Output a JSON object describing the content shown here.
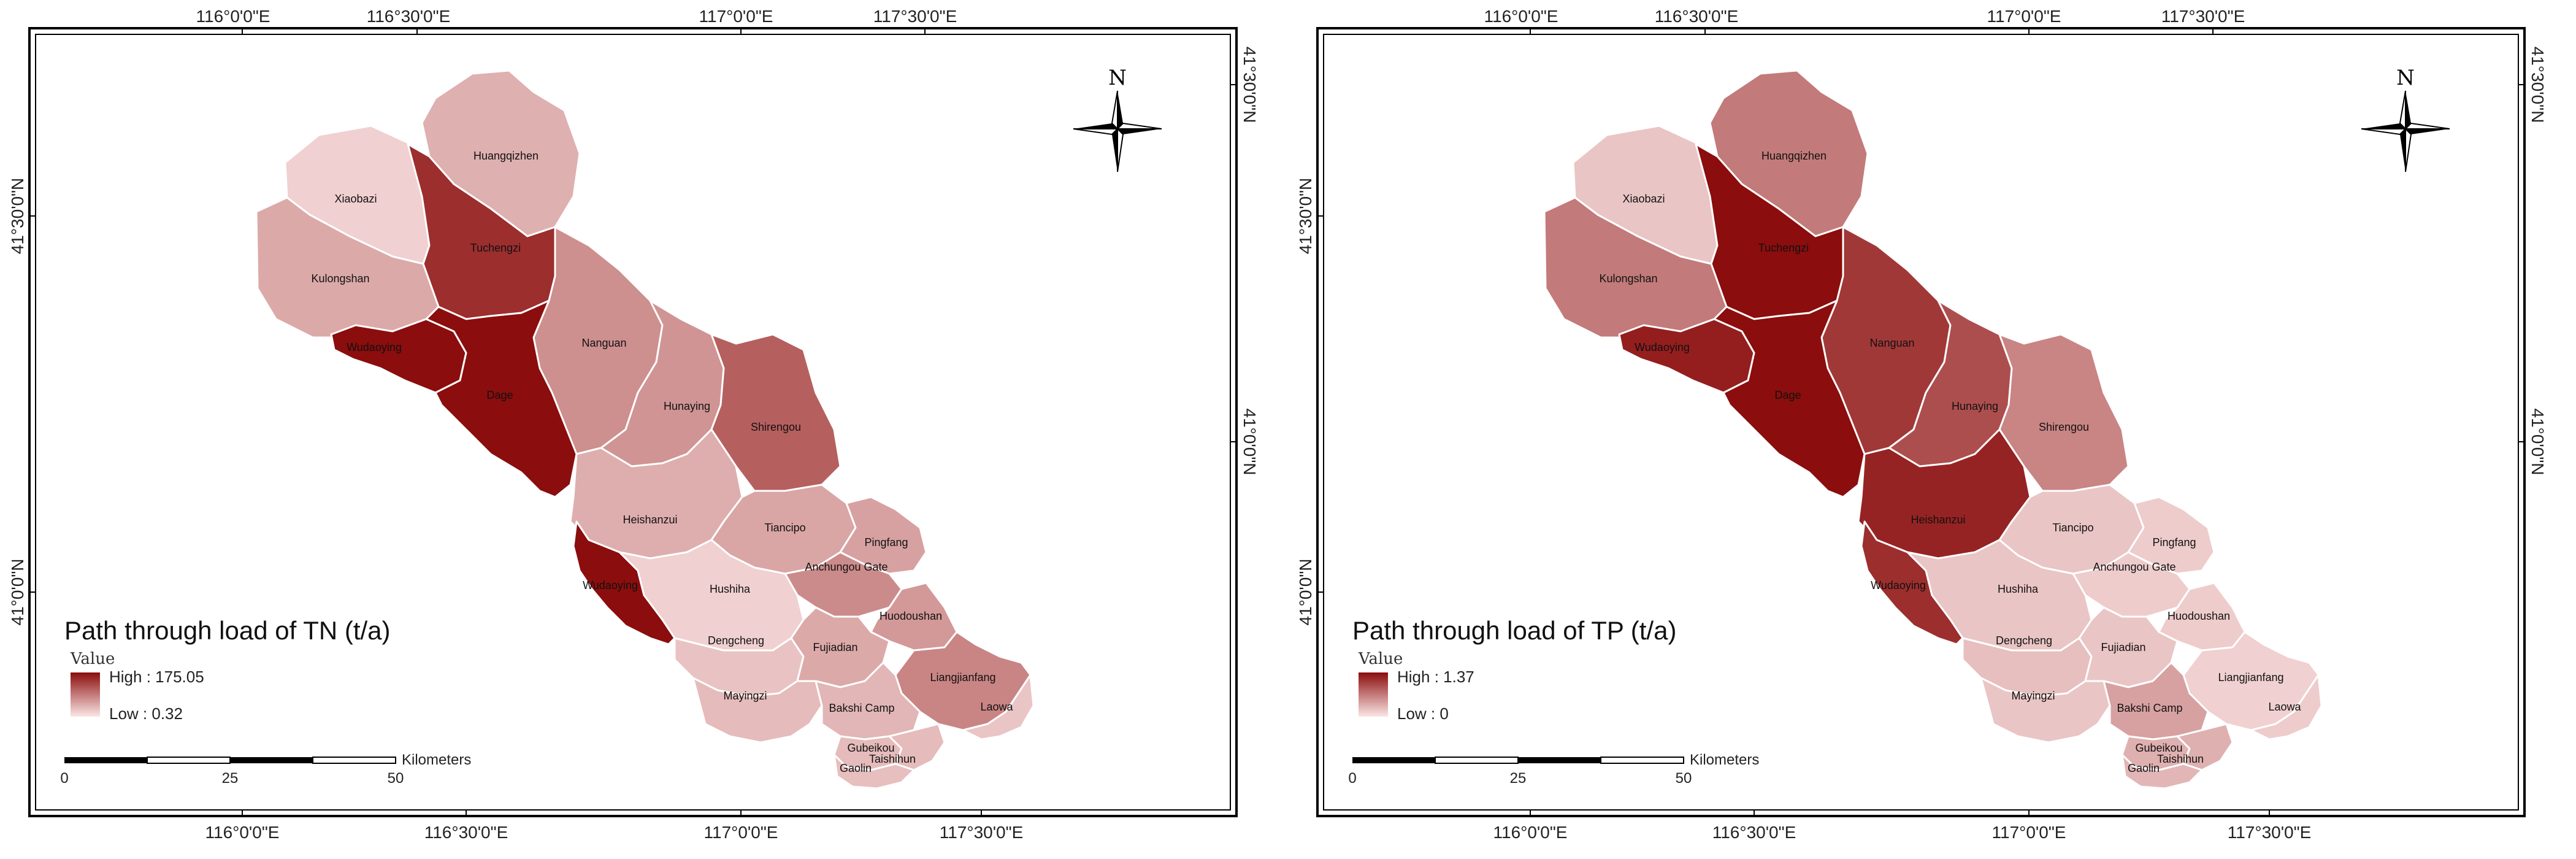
{
  "maps": [
    {
      "id": "tn",
      "legend_title": "Path through load of TN (t/a)",
      "legend_value_label": "Value",
      "legend_high": "High : 175.05",
      "legend_low": "Low : 0.32",
      "ramp_dark": "#8b0d0d",
      "ramp_light": "#fbe6e6",
      "top_ticks": [
        "116°0'0\"E",
        "116°30'0\"E",
        "117°0'0\"E",
        "117°30'0\"E"
      ],
      "bottom_ticks": [
        "116°0'0\"E",
        "116°30'0\"E",
        "117°0'0\"E",
        "117°30'0\"E"
      ],
      "left_ticks": [
        "41°30'0\"N",
        "41°0'0\"N"
      ],
      "right_ticks": [
        "41°30'0\"N",
        "41°0'0\"N"
      ],
      "scale_labels": [
        "0",
        "25",
        "50"
      ],
      "scale_unit": "Kilometers",
      "north_label": "N",
      "regions": [
        {
          "name": "Huangqizhen",
          "level": 0.25
        },
        {
          "name": "Xiaobazi",
          "level": 0.1
        },
        {
          "name": "Tuchengzi",
          "level": 0.85
        },
        {
          "name": "Kulongshan",
          "level": 0.28
        },
        {
          "name": "Nanguan",
          "level": 0.4
        },
        {
          "name": "Wudaoying",
          "level": 1.0
        },
        {
          "name": "Dage",
          "level": 1.0
        },
        {
          "name": "Hunaying",
          "level": 0.38
        },
        {
          "name": "Shirengou",
          "level": 0.62
        },
        {
          "name": "Heishanzui",
          "level": 0.26
        },
        {
          "name": "Tiancipo",
          "level": 0.3
        },
        {
          "name": "Pingfang",
          "level": 0.32
        },
        {
          "name": "Anchungou Gate",
          "level": 0.42
        },
        {
          "name": "Wudaoying",
          "level": 1.0
        },
        {
          "name": "Hushiha",
          "level": 0.1
        },
        {
          "name": "Huodoushan",
          "level": 0.36
        },
        {
          "name": "Dengcheng",
          "level": 0.16
        },
        {
          "name": "Fujiadian",
          "level": 0.28
        },
        {
          "name": "Liangjianfang",
          "level": 0.45
        },
        {
          "name": "Mayingzi",
          "level": 0.2
        },
        {
          "name": "Bakshi Camp",
          "level": 0.22
        },
        {
          "name": "Laowa",
          "level": 0.15
        },
        {
          "name": "Gubeikou",
          "level": 0.2
        },
        {
          "name": "Taishihun",
          "level": 0.2
        },
        {
          "name": "Gaolin",
          "level": 0.18
        }
      ]
    },
    {
      "id": "tp",
      "legend_title": "Path through load of TP (t/a)",
      "legend_value_label": "Value",
      "legend_high": "High : 1.37",
      "legend_low": "Low : 0",
      "ramp_dark": "#8b0d0d",
      "ramp_light": "#fbe6e6",
      "top_ticks": [
        "116°0'0\"E",
        "116°30'0\"E",
        "117°0'0\"E",
        "117°30'0\"E"
      ],
      "bottom_ticks": [
        "116°0'0\"E",
        "116°30'0\"E",
        "117°0'0\"E",
        "117°30'0\"E"
      ],
      "left_ticks": [
        "41°30'0\"N",
        "41°0'0\"N"
      ],
      "right_ticks": [
        "41°30'0\"N",
        "41°0'0\"N"
      ],
      "scale_labels": [
        "0",
        "25",
        "50"
      ],
      "scale_unit": "Kilometers",
      "north_label": "N",
      "regions": [
        {
          "name": "Huangqizhen",
          "level": 0.5
        },
        {
          "name": "Xiaobazi",
          "level": 0.15
        },
        {
          "name": "Tuchengzi",
          "level": 1.0
        },
        {
          "name": "Kulongshan",
          "level": 0.5
        },
        {
          "name": "Nanguan",
          "level": 0.8
        },
        {
          "name": "Wudaoying",
          "level": 0.92
        },
        {
          "name": "Dage",
          "level": 1.0
        },
        {
          "name": "Hunaying",
          "level": 0.7
        },
        {
          "name": "Shirengou",
          "level": 0.45
        },
        {
          "name": "Heishanzui",
          "level": 0.9
        },
        {
          "name": "Tiancipo",
          "level": 0.15
        },
        {
          "name": "Pingfang",
          "level": 0.12
        },
        {
          "name": "Anchungou Gate",
          "level": 0.12
        },
        {
          "name": "Wudaoying",
          "level": 0.85
        },
        {
          "name": "Hushiha",
          "level": 0.15
        },
        {
          "name": "Huodoushan",
          "level": 0.12
        },
        {
          "name": "Dengcheng",
          "level": 0.18
        },
        {
          "name": "Fujiadian",
          "level": 0.15
        },
        {
          "name": "Liangjianfang",
          "level": 0.1
        },
        {
          "name": "Mayingzi",
          "level": 0.15
        },
        {
          "name": "Bakshi Camp",
          "level": 0.32
        },
        {
          "name": "Laowa",
          "level": 0.12
        },
        {
          "name": "Gubeikou",
          "level": 0.25
        },
        {
          "name": "Taishihun",
          "level": 0.25
        },
        {
          "name": "Gaolin",
          "level": 0.22
        }
      ]
    }
  ]
}
